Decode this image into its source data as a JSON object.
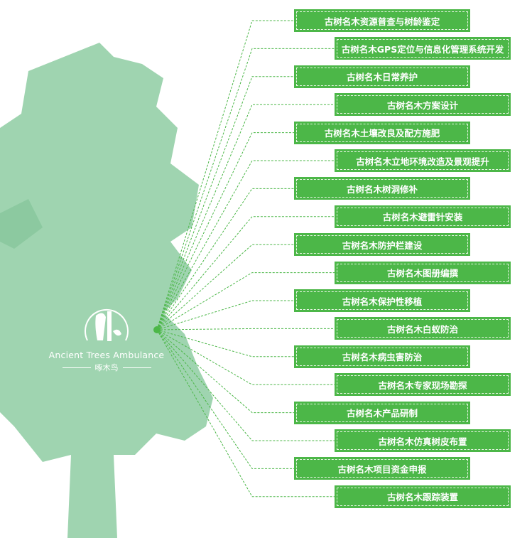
{
  "logo": {
    "english": "Ancient Trees Ambulance",
    "chinese": "啄木鸟"
  },
  "colors": {
    "box": "#4cb748",
    "tree": "#9fd4b0",
    "line": "#4cb748"
  },
  "services": [
    "古树名木资源普查与树龄鉴定",
    "古树名木GPS定位与信息化管理系统开发",
    "古树名木日常养护",
    "古树名木方案设计",
    "古树名木土壤改良及配方施肥",
    "古树名木立地环境改造及景观提升",
    "古树名木树洞修补",
    "古树名木避雷针安装",
    "古树名木防护栏建设",
    "古树名木图册编撰",
    "古树名木保护性移植",
    "古树名木白蚁防治",
    "古树名木病虫害防治",
    "古树名木专家现场勘探",
    "古树名木产品研制",
    "古树名木仿真树皮布置",
    "古树名木项目资金申报",
    "古树名木跟踪装置"
  ]
}
